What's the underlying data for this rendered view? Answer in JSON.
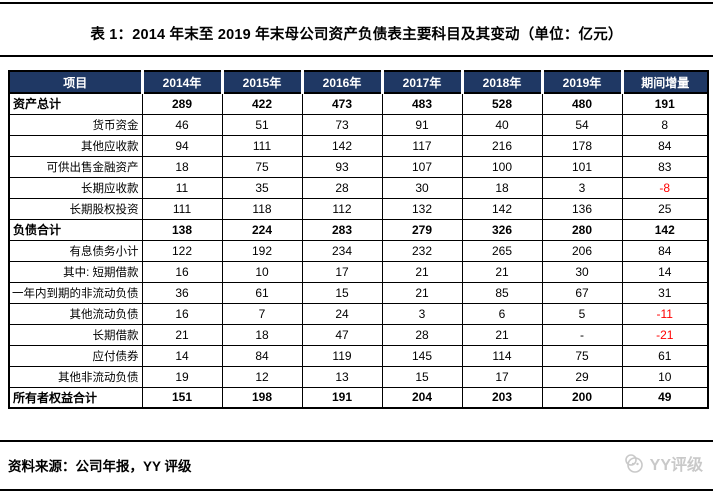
{
  "title": "表 1：2014 年末至 2019 年末母公司资产负债表主要科目及其变动（单位：亿元）",
  "colors": {
    "header_bg": "#1F3864",
    "negative": "#FF0000",
    "watermark": "#C9C9C9"
  },
  "chart_data": {
    "type": "table",
    "title": "表 1：2014 年末至 2019 年末母公司资产负债表主要科目及其变动（单位：亿元）",
    "columns": [
      "项目",
      "2014年",
      "2015年",
      "2016年",
      "2017年",
      "2018年",
      "2019年",
      "期间增量"
    ],
    "rows": [
      {
        "label": "资产总计",
        "values": [
          "289",
          "422",
          "473",
          "483",
          "528",
          "480",
          "191"
        ],
        "bold": true
      },
      {
        "label": "货币资金",
        "values": [
          "46",
          "51",
          "73",
          "91",
          "40",
          "54",
          "8"
        ],
        "bold": false
      },
      {
        "label": "其他应收款",
        "values": [
          "94",
          "111",
          "142",
          "117",
          "216",
          "178",
          "84"
        ],
        "bold": false
      },
      {
        "label": "可供出售金融资产",
        "values": [
          "18",
          "75",
          "93",
          "107",
          "100",
          "101",
          "83"
        ],
        "bold": false
      },
      {
        "label": "长期应收款",
        "values": [
          "11",
          "35",
          "28",
          "30",
          "18",
          "3",
          "-8"
        ],
        "bold": false
      },
      {
        "label": "长期股权投资",
        "values": [
          "111",
          "118",
          "112",
          "132",
          "142",
          "136",
          "25"
        ],
        "bold": false
      },
      {
        "label": "负债合计",
        "values": [
          "138",
          "224",
          "283",
          "279",
          "326",
          "280",
          "142"
        ],
        "bold": true
      },
      {
        "label": "有息债务小计",
        "values": [
          "122",
          "192",
          "234",
          "232",
          "265",
          "206",
          "84"
        ],
        "bold": false
      },
      {
        "label": "其中: 短期借款",
        "values": [
          "16",
          "10",
          "17",
          "21",
          "21",
          "30",
          "14"
        ],
        "bold": false
      },
      {
        "label": "一年内到期的非流动负债",
        "values": [
          "36",
          "61",
          "15",
          "21",
          "85",
          "67",
          "31"
        ],
        "bold": false
      },
      {
        "label": "其他流动负债",
        "values": [
          "16",
          "7",
          "24",
          "3",
          "6",
          "5",
          "-11"
        ],
        "bold": false
      },
      {
        "label": "长期借款",
        "values": [
          "21",
          "18",
          "47",
          "28",
          "21",
          "-",
          "-21"
        ],
        "bold": false
      },
      {
        "label": "应付债券",
        "values": [
          "14",
          "84",
          "119",
          "145",
          "114",
          "75",
          "61"
        ],
        "bold": false
      },
      {
        "label": "其他非流动负债",
        "values": [
          "19",
          "12",
          "13",
          "15",
          "17",
          "29",
          "10"
        ],
        "bold": false
      },
      {
        "label": "所有者权益合计",
        "values": [
          "151",
          "198",
          "191",
          "204",
          "203",
          "200",
          "49"
        ],
        "bold": true
      }
    ]
  },
  "footer": {
    "source": "资料来源：公司年报，YY 评级"
  },
  "watermark": {
    "text": "YY评级"
  }
}
